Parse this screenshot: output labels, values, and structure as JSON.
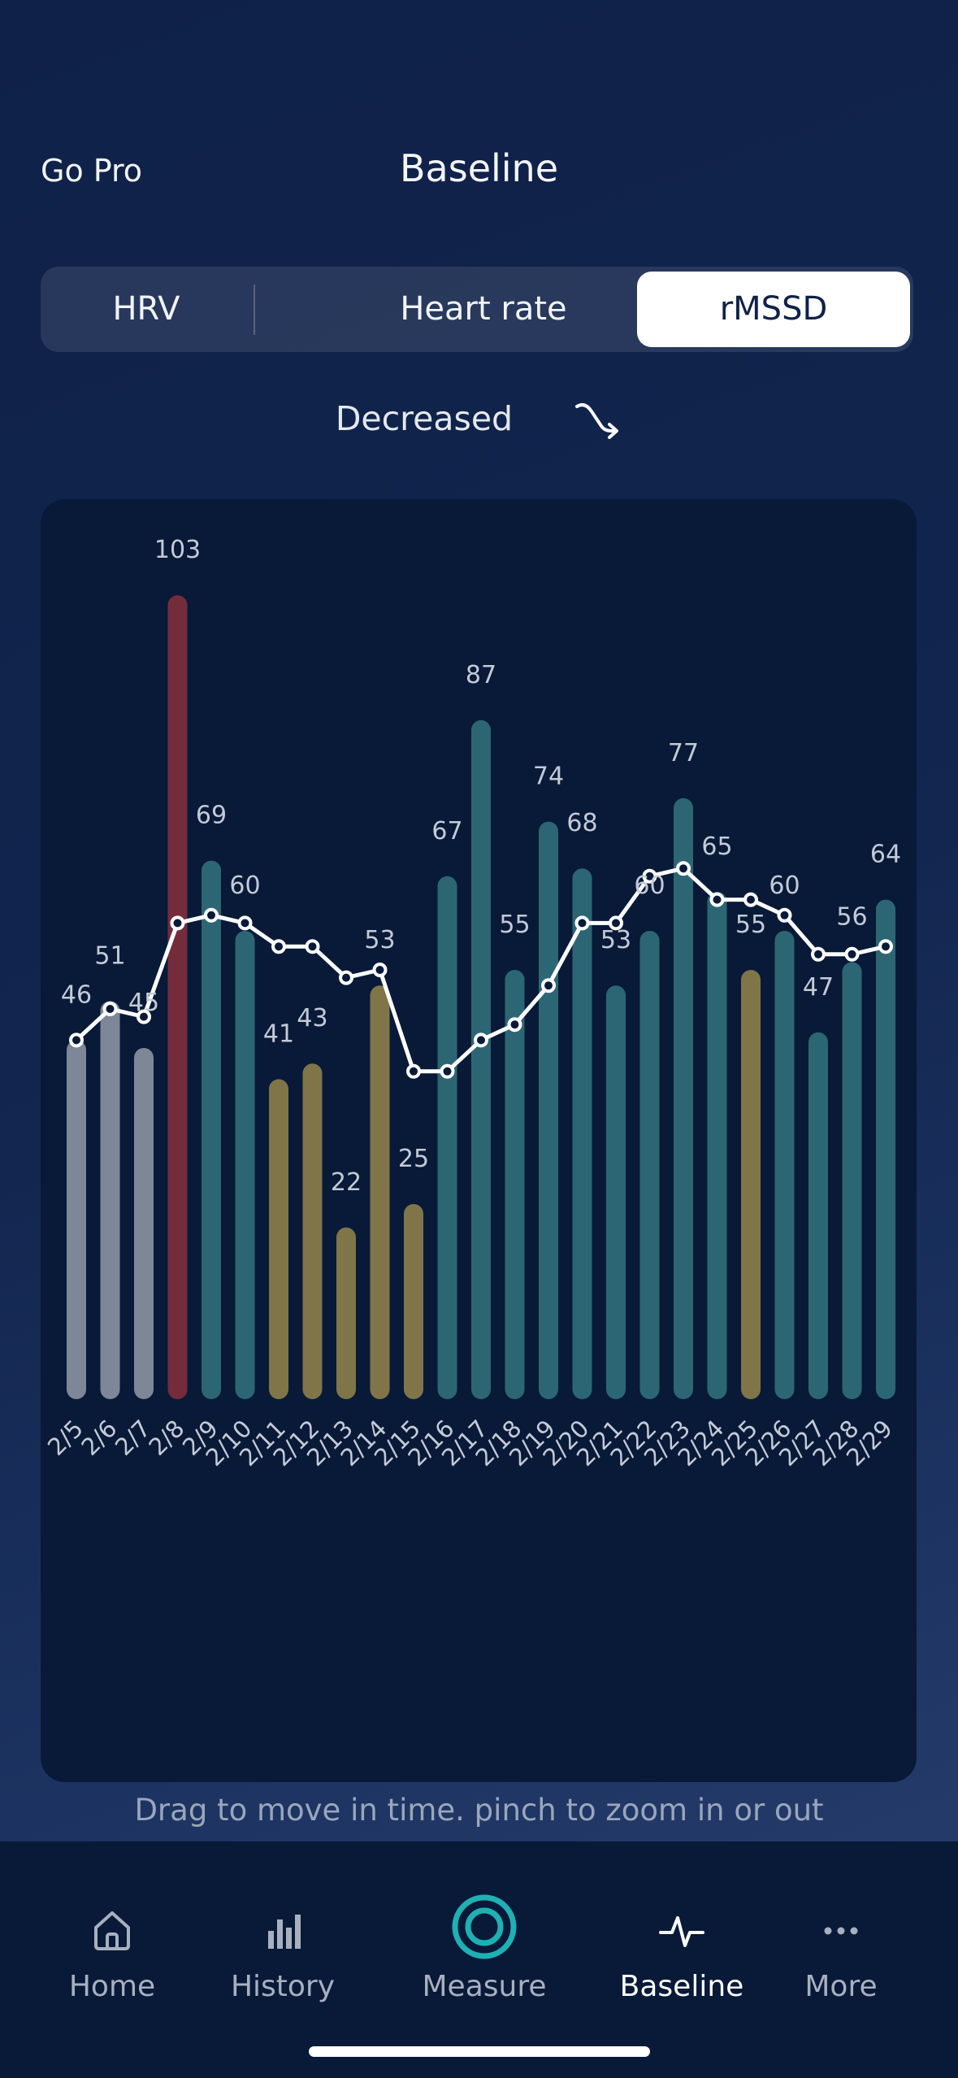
{
  "header": {
    "go_pro": "Go Pro",
    "title": "Baseline"
  },
  "tabs": [
    {
      "label": "HRV",
      "selected": false
    },
    {
      "label": "Heart rate",
      "selected": false
    },
    {
      "label": "rMSSD",
      "selected": true
    }
  ],
  "trend": {
    "label": "Decreased",
    "icon": "trend-down-arrow-icon"
  },
  "chart_data": {
    "type": "bar",
    "categories": [
      "2/5",
      "2/6",
      "2/7",
      "2/8",
      "2/9",
      "2/10",
      "2/11",
      "2/12",
      "2/13",
      "2/14",
      "2/15",
      "2/16",
      "2/17",
      "2/18",
      "2/19",
      "2/20",
      "2/21",
      "2/22",
      "2/23",
      "2/24",
      "2/25",
      "2/26",
      "2/27",
      "2/28",
      "2/29"
    ],
    "values": [
      46,
      51,
      45,
      103,
      69,
      60,
      41,
      43,
      22,
      53,
      25,
      67,
      87,
      55,
      74,
      68,
      53,
      60,
      77,
      65,
      55,
      60,
      47,
      56,
      64
    ],
    "bar_colors": [
      "#7d8798",
      "#7d8798",
      "#7d8798",
      "#742c3b",
      "#2c6674",
      "#2c6674",
      "#7f7548",
      "#7f7548",
      "#7f7548",
      "#7f7548",
      "#7f7548",
      "#2c6674",
      "#2c6674",
      "#2c6674",
      "#2c6674",
      "#2c6674",
      "#2c6674",
      "#2c6674",
      "#2c6674",
      "#2c6674",
      "#7f7548",
      "#2c6674",
      "#2c6674",
      "#2c6674",
      "#2c6674"
    ],
    "baseline_line": [
      46,
      50,
      49,
      61,
      62,
      61,
      58,
      58,
      54,
      55,
      42,
      42,
      46,
      48,
      53,
      61,
      61,
      67,
      68,
      64,
      64,
      62,
      57,
      57,
      58
    ],
    "ylim": [
      0,
      105
    ]
  },
  "hint": "Drag to move in time. pinch to zoom in or out",
  "tabbar": [
    {
      "label": "Home",
      "icon": "home-icon",
      "active": false
    },
    {
      "label": "History",
      "icon": "bar-chart-icon",
      "active": false
    },
    {
      "label": "Measure",
      "icon": "measure-ring-icon",
      "active": false
    },
    {
      "label": "Baseline",
      "icon": "pulse-icon",
      "active": true
    },
    {
      "label": "More",
      "icon": "more-dots-icon",
      "active": false
    }
  ],
  "colors": {
    "accent_teal": "#1fb0b3",
    "line": "#ffffff",
    "card": "#081a38"
  }
}
